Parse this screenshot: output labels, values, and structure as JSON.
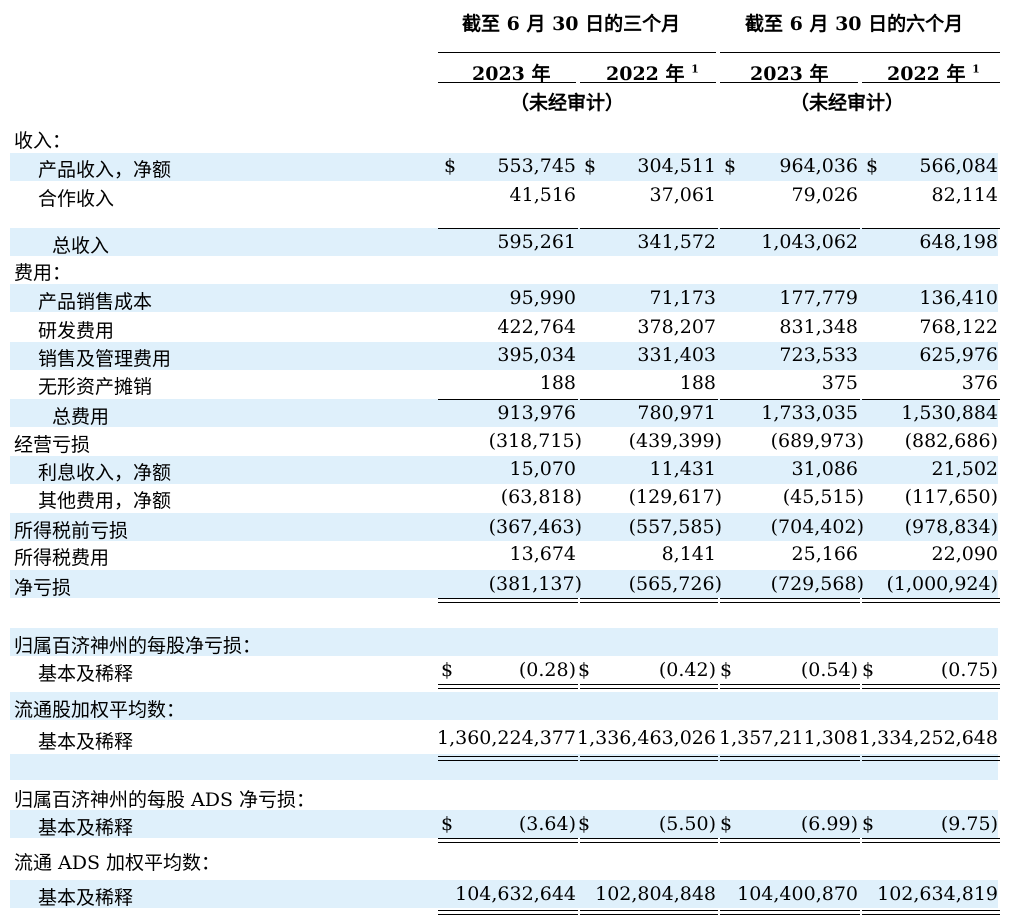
{
  "header": {
    "period_three": "截至 6 月 30 日的三个月",
    "period_six": "截至 6 月 30 日的六个月",
    "y2023_a": "2023 年",
    "y2022_a": "2022 年",
    "y2023_b": "2023 年",
    "y2022_b": "2022 年",
    "note_mark": "1",
    "unaudited_a": "（未经审计）",
    "unaudited_b": "（未经审计）"
  },
  "currency": "$",
  "rows": {
    "revenue_hdr": "收入：",
    "product_rev": {
      "label": "产品收入，净额",
      "v": [
        "553,745",
        "304,511",
        "964,036",
        "566,084"
      ]
    },
    "collab_rev": {
      "label": "合作收入",
      "v": [
        "41,516",
        "37,061",
        "79,026",
        "82,114"
      ]
    },
    "total_rev": {
      "label": "总收入",
      "v": [
        "595,261",
        "341,572",
        "1,043,062",
        "648,198"
      ]
    },
    "expense_hdr": "费用：",
    "cogs": {
      "label": "产品销售成本",
      "v": [
        "95,990",
        "71,173",
        "177,779",
        "136,410"
      ]
    },
    "rnd": {
      "label": "研发费用",
      "v": [
        "422,764",
        "378,207",
        "831,348",
        "768,122"
      ]
    },
    "sga": {
      "label": "销售及管理费用",
      "v": [
        "395,034",
        "331,403",
        "723,533",
        "625,976"
      ]
    },
    "amort": {
      "label": "无形资产摊销",
      "v": [
        "188",
        "188",
        "375",
        "376"
      ]
    },
    "total_exp": {
      "label": "总费用",
      "v": [
        "913,976",
        "780,971",
        "1,733,035",
        "1,530,884"
      ]
    },
    "op_loss": {
      "label": "经营亏损",
      "v": [
        "(318,715)",
        "(439,399)",
        "(689,973)",
        "(882,686)"
      ]
    },
    "interest": {
      "label": "利息收入，净额",
      "v": [
        "15,070",
        "11,431",
        "31,086",
        "21,502"
      ]
    },
    "other_exp": {
      "label": "其他费用，净额",
      "v": [
        "(63,818)",
        "(129,617)",
        "(45,515)",
        "(117,650)"
      ]
    },
    "pretax": {
      "label": "所得税前亏损",
      "v": [
        "(367,463)",
        "(557,585)",
        "(704,402)",
        "(978,834)"
      ]
    },
    "tax": {
      "label": "所得税费用",
      "v": [
        "13,674",
        "8,141",
        "25,166",
        "22,090"
      ]
    },
    "net_loss": {
      "label": "净亏损",
      "v": [
        "(381,137)",
        "(565,726)",
        "(729,568)",
        "(1,000,924)"
      ]
    },
    "eps_hdr": "归属百济神州的每股净亏损：",
    "eps": {
      "label": "基本及稀释",
      "v": [
        "(0.28)",
        "(0.42)",
        "(0.54)",
        "(0.75)"
      ]
    },
    "shares_hdr": "流通股加权平均数：",
    "shares": {
      "label": "基本及稀释",
      "v": [
        "1,360,224,377",
        "1,336,463,026",
        "1,357,211,308",
        "1,334,252,648"
      ]
    },
    "ads_hdr": "归属百济神州的每股 ADS 净亏损：",
    "ads_eps": {
      "label": "基本及稀释",
      "v": [
        "(3.64)",
        "(5.50)",
        "(6.99)",
        "(9.75)"
      ]
    },
    "ads_shares_hdr": "流通 ADS 加权平均数：",
    "ads_shares": {
      "label": "基本及稀释",
      "v": [
        "104,632,644",
        "102,804,848",
        "104,400,870",
        "102,634,819"
      ]
    }
  }
}
